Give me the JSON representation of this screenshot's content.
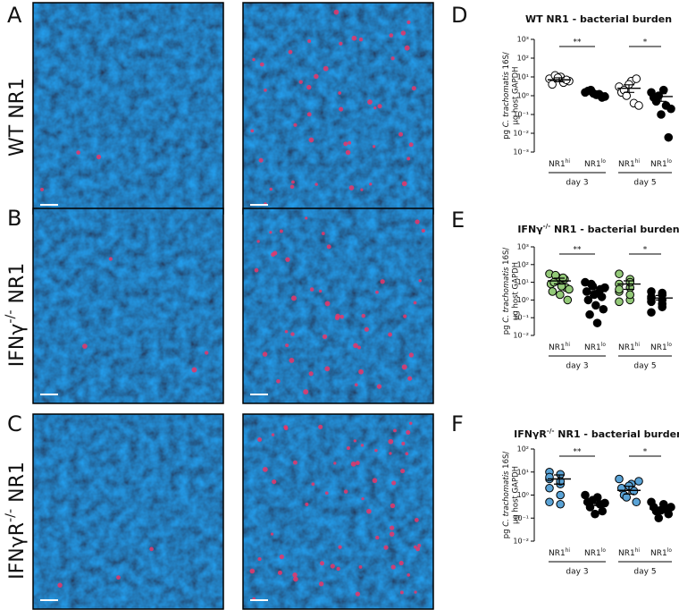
{
  "panel_labels": [
    "A",
    "B",
    "C",
    "D",
    "E",
    "F"
  ],
  "row_labels": [
    {
      "text": "WT NR1"
    },
    {
      "text": "IFNγ",
      "sup": "-/-",
      "after": " NR1"
    },
    {
      "text": "IFNγR",
      "sup": "-/-",
      "after": " NR1"
    }
  ],
  "chart_data": [
    {
      "type": "scatter",
      "title": "WT NR1 - bacterial burden",
      "y_label": {
        "line1": [
          "pg ",
          "C. trachomatis",
          " 16S/"
        ],
        "line2": "µg host GAPDH"
      },
      "log_y": true,
      "ylim": [
        0.001,
        1000
      ],
      "yticks": [
        {
          "value": 0.001,
          "label": "10⁻³"
        },
        {
          "value": 0.01,
          "label": "10⁻²"
        },
        {
          "value": 0.1,
          "label": "10⁻¹"
        },
        {
          "value": 1,
          "label": "10⁰"
        },
        {
          "value": 10,
          "label": "10¹"
        },
        {
          "value": 100,
          "label": "10²"
        },
        {
          "value": 1000,
          "label": "10³"
        }
      ],
      "categories": [
        {
          "text": "NR1",
          "sup": "hi"
        },
        {
          "text": "NR1",
          "sup": "lo"
        },
        {
          "text": "NR1",
          "sup": "hi"
        },
        {
          "text": "NR1",
          "sup": "lo"
        }
      ],
      "groups": [
        "day 3",
        "day 5"
      ],
      "significance": [
        "**",
        "*"
      ],
      "colors": [
        "#ffffff",
        "#000000",
        "#ffffff",
        "#000000"
      ],
      "values": [
        [
          8,
          5,
          12,
          6,
          10,
          4,
          7,
          9
        ],
        [
          1.5,
          1.2,
          2,
          0.9,
          1.1,
          1.8,
          0.8,
          1.3
        ],
        [
          3,
          6,
          1.5,
          0.4,
          2,
          8,
          1,
          0.3,
          4
        ],
        [
          1.5,
          2,
          0.8,
          0.3,
          0.5,
          0.006,
          1,
          0.2,
          0.1
        ]
      ],
      "mean": [
        7,
        1.4,
        2.5,
        0.9
      ],
      "error": [
        [
          5.5,
          9
        ],
        [
          1.1,
          1.8
        ],
        [
          1.5,
          3.8
        ],
        [
          0.5,
          1.3
        ]
      ]
    },
    {
      "type": "scatter",
      "title": {
        "text": "IFNγ",
        "sup": "-/-",
        "after": " NR1 - bacterial burden"
      },
      "y_label": {
        "line1": [
          "pg ",
          "C. trachomatis",
          " 16S/"
        ],
        "line2": "µg host GAPDH"
      },
      "log_y": true,
      "ylim": [
        0.01,
        1000
      ],
      "yticks": [
        {
          "value": 0.01,
          "label": "10⁻²"
        },
        {
          "value": 0.1,
          "label": "10⁻¹"
        },
        {
          "value": 1,
          "label": "10⁰"
        },
        {
          "value": 10,
          "label": "10¹"
        },
        {
          "value": 100,
          "label": "10²"
        },
        {
          "value": 1000,
          "label": "10³"
        }
      ],
      "categories": [
        {
          "text": "NR1",
          "sup": "hi"
        },
        {
          "text": "NR1",
          "sup": "lo"
        },
        {
          "text": "NR1",
          "sup": "hi"
        },
        {
          "text": "NR1",
          "sup": "lo"
        }
      ],
      "groups": [
        "day 3",
        "day 5"
      ],
      "significance": [
        "**",
        "*"
      ],
      "colors": [
        "#93c978",
        "#000000",
        "#93c978",
        "#000000"
      ],
      "values": [
        [
          30,
          20,
          15,
          8,
          12,
          5,
          3,
          2,
          1,
          10,
          6,
          4,
          25,
          18
        ],
        [
          10,
          6,
          4,
          3,
          2,
          1.5,
          1,
          0.5,
          0.3,
          0.15,
          0.05,
          5,
          8,
          2.5
        ],
        [
          30,
          15,
          8,
          5,
          3,
          1,
          0.8,
          10,
          4,
          2
        ],
        [
          3,
          2,
          1.5,
          1,
          0.8,
          0.4,
          0.2,
          2.5,
          1.2,
          0.6
        ]
      ],
      "mean": [
        12,
        3,
        8,
        1.3
      ],
      "error": [
        [
          8,
          17
        ],
        [
          1.8,
          4.5
        ],
        [
          4,
          12
        ],
        [
          1,
          1.8
        ]
      ]
    },
    {
      "type": "scatter",
      "title": {
        "text": "IFNγR",
        "sup": "-/-",
        "after": " NR1 - bacterial burden"
      },
      "y_label": {
        "line1": [
          "pg ",
          "C. trachomatis",
          " 16S/"
        ],
        "line2": "µg host GAPDH"
      },
      "log_y": true,
      "ylim": [
        0.01,
        100
      ],
      "yticks": [
        {
          "value": 0.01,
          "label": "10⁻²"
        },
        {
          "value": 0.1,
          "label": "10⁻¹"
        },
        {
          "value": 1,
          "label": "10⁰"
        },
        {
          "value": 10,
          "label": "10¹"
        },
        {
          "value": 100,
          "label": "10²"
        }
      ],
      "categories": [
        {
          "text": "NR1",
          "sup": "hi"
        },
        {
          "text": "NR1",
          "sup": "lo"
        },
        {
          "text": "NR1",
          "sup": "hi"
        },
        {
          "text": "NR1",
          "sup": "lo"
        }
      ],
      "groups": [
        "day 3",
        "day 5"
      ],
      "significance": [
        "**",
        "*"
      ],
      "colors": [
        "#5aa3d6",
        "#000000",
        "#5aa3d6",
        "#000000"
      ],
      "values": [
        [
          10,
          8,
          5,
          3,
          2,
          1,
          0.5,
          0.4,
          6,
          4
        ],
        [
          1,
          0.8,
          0.5,
          0.4,
          0.3,
          0.2,
          0.6,
          0.45,
          0.15
        ],
        [
          5,
          3,
          2,
          1.5,
          1,
          0.5,
          0.8,
          4,
          2.5
        ],
        [
          0.5,
          0.4,
          0.3,
          0.25,
          0.2,
          0.15,
          0.1,
          0.3,
          0.22
        ]
      ],
      "mean": [
        5,
        0.45,
        1.6,
        0.25
      ],
      "error": [
        [
          3,
          7.5
        ],
        [
          0.35,
          0.6
        ],
        [
          1.1,
          2.4
        ],
        [
          0.2,
          0.3
        ]
      ]
    }
  ]
}
